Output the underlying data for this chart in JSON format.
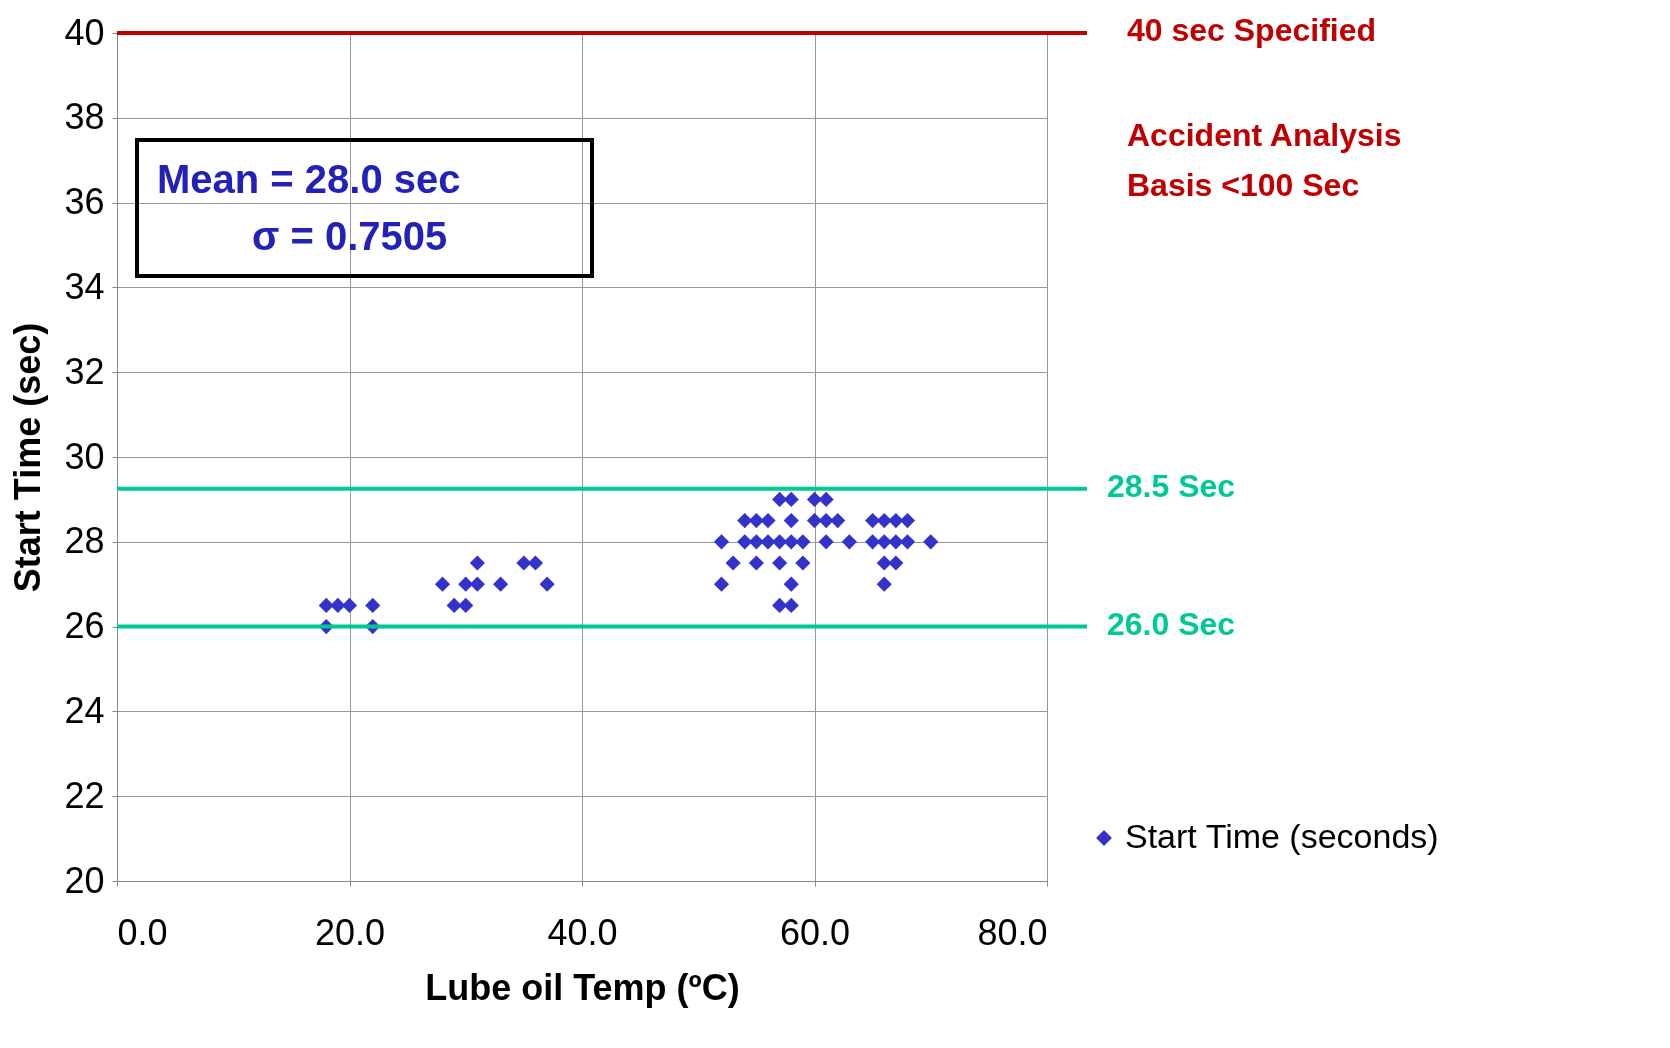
{
  "chart_data": {
    "type": "scatter",
    "xlabel": "Lube oil Temp (ºC)",
    "ylabel": "Start Time (sec)",
    "xlim": [
      0,
      80
    ],
    "xticks": [
      {
        "value": 0,
        "label": "0.0"
      },
      {
        "value": 20,
        "label": "20.0"
      },
      {
        "value": 40,
        "label": "40.0"
      },
      {
        "value": 60,
        "label": "60.0"
      },
      {
        "value": 80,
        "label": "80.0"
      }
    ],
    "ylim": [
      20,
      40
    ],
    "yticks": [
      20,
      22,
      24,
      26,
      28,
      30,
      32,
      34,
      36,
      38,
      40
    ],
    "grid": true,
    "marker": "diamond",
    "legend": "right",
    "series": [
      {
        "name": "Start Time (seconds)",
        "color": "#3333cc",
        "x": [
          18,
          18,
          19,
          20,
          22,
          22,
          28,
          29,
          30,
          30,
          31,
          31,
          33,
          35,
          36,
          37,
          52,
          52,
          53,
          54,
          54,
          55,
          55,
          55,
          56,
          56,
          57,
          57,
          57,
          57,
          58,
          58,
          58,
          58,
          58,
          59,
          59,
          60,
          60,
          61,
          61,
          61,
          62,
          63,
          65,
          65,
          66,
          66,
          66,
          66,
          67,
          67,
          67,
          68,
          68,
          70
        ],
        "values": [
          26,
          26.5,
          26.5,
          26.5,
          26.5,
          26,
          27,
          26.5,
          26.5,
          27,
          27.5,
          27,
          27,
          27.5,
          27.5,
          27,
          28,
          27,
          27.5,
          28.5,
          28,
          28.5,
          28,
          27.5,
          28.5,
          28,
          29,
          28,
          27.5,
          26.5,
          29,
          28.5,
          28,
          27,
          26.5,
          28,
          27.5,
          29,
          28.5,
          29,
          28.5,
          28,
          28.5,
          28,
          28.5,
          28,
          28.5,
          28,
          27.5,
          27,
          28.5,
          28,
          27.5,
          28.5,
          28,
          28
        ]
      }
    ],
    "ref_lines": [
      {
        "axis": "y",
        "value": 40,
        "label": "40 sec Specified",
        "color": "#c00000"
      },
      {
        "axis": "y",
        "value": 29.25,
        "label": "28.5 Sec",
        "color": "#00c896"
      },
      {
        "axis": "y",
        "value": 26,
        "label": "26.0 Sec",
        "color": "#00c896"
      }
    ],
    "annotations": [
      "Mean = 28.0 sec",
      "σ = 0.7505",
      "Accident Analysis\nBasis <100 Sec"
    ]
  }
}
